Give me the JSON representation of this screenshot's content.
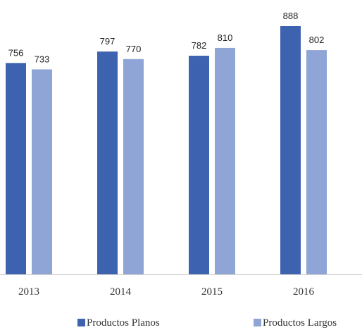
{
  "chart_data": {
    "type": "bar",
    "categories": [
      "2013",
      "2014",
      "2015",
      "2016"
    ],
    "series": [
      {
        "name": "Productos Planos",
        "values": [
          756,
          797,
          782,
          888
        ],
        "color": "#3d63b0"
      },
      {
        "name": "Productos Largos",
        "values": [
          733,
          770,
          810,
          802
        ],
        "color": "#8fa5d6"
      }
    ],
    "ylim": [
      0,
      900
    ],
    "grid": false,
    "legend_position": "bottom",
    "title": "",
    "xlabel": "",
    "ylabel": ""
  }
}
